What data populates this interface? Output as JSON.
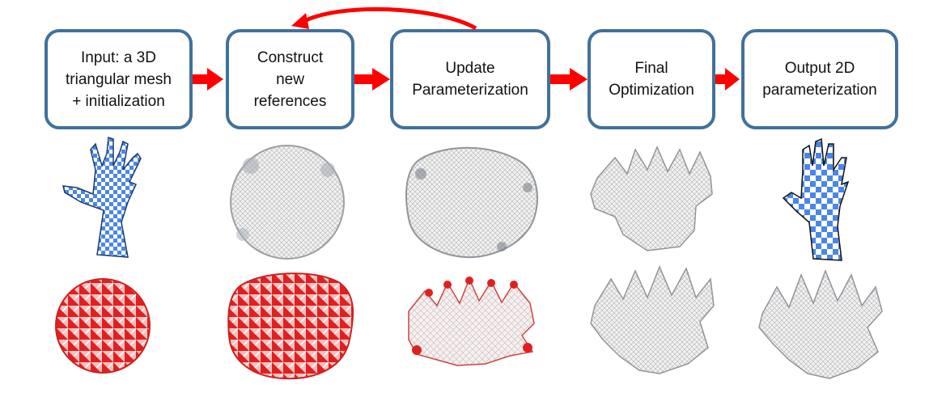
{
  "steps": [
    {
      "label": "Input: a 3D\ntriangular mesh\n+ initialization"
    },
    {
      "label": "Construct\nnew\nreferences"
    },
    {
      "label": "Update\nParameterization"
    },
    {
      "label": "Final\nOptimization"
    },
    {
      "label": "Output 2D\nparameterization"
    }
  ],
  "colors": {
    "box_border": "#41719c",
    "arrow": "#ff0000",
    "checker_blue": "#4a86e8",
    "mesh_gray": "#d9d9d9",
    "distortion_red": "#e02020"
  },
  "icons": {
    "row1": [
      "hand-mesh-3d-icon",
      "disk-parameterization-icon",
      "blob-parameterization-icon",
      "hand-flat-gray-icon",
      "hand-checkerboard-icon"
    ],
    "row2": [
      "disk-distortion-icon",
      "blob-distortion-icon",
      "hand-distortion-icon",
      "hand-distortion-low-icon",
      "hand-distortion-none-icon"
    ]
  }
}
